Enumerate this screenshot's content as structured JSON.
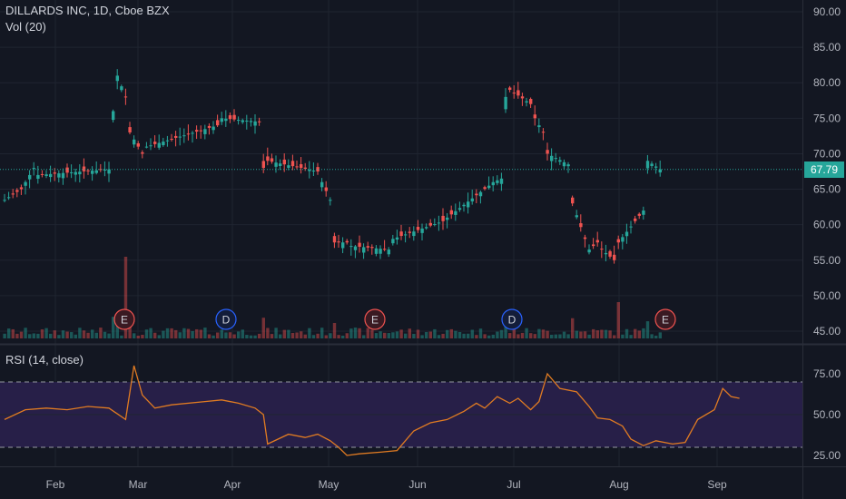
{
  "chart_data": {
    "type": "candlestick",
    "title": "DILLARDS INC, 1D, Cboe BZX",
    "volume_label": "Vol (20)",
    "price_axis": {
      "ticks": [
        90,
        85,
        80,
        75,
        70,
        65,
        60,
        55,
        50,
        45
      ],
      "tick_labels": [
        "90.00",
        "85.00",
        "80.00",
        "75.00",
        "70.00",
        "65.00",
        "60.00",
        "55.00",
        "50.00",
        "45.00"
      ],
      "range": [
        45,
        90
      ]
    },
    "last_price": 67.79,
    "last_price_label": "67.79",
    "x_axis": {
      "labels": [
        "Feb",
        "Mar",
        "Apr",
        "May",
        "Jun",
        "Jul",
        "Aug",
        "Sep"
      ]
    },
    "segments": [
      {
        "n": 5,
        "from": 63.5,
        "to": 65.0
      },
      {
        "n": 3,
        "from": 66.0,
        "to": 68.0
      },
      {
        "n": 18,
        "from": 67.0,
        "to": 67.8
      },
      {
        "n": 1,
        "from": 76.0,
        "to": 76.0
      },
      {
        "n": 3,
        "from": 81.0,
        "to": 78.0
      },
      {
        "n": 4,
        "from": 73.0,
        "to": 70.0
      },
      {
        "n": 18,
        "from": 71.0,
        "to": 74.0
      },
      {
        "n": 10,
        "from": 75.0,
        "to": 74.5
      },
      {
        "n": 1,
        "from": 68.0,
        "to": 68.0
      },
      {
        "n": 13,
        "from": 69.0,
        "to": 67.5
      },
      {
        "n": 3,
        "from": 66.0,
        "to": 63.5
      },
      {
        "n": 4,
        "from": 57.5,
        "to": 57.5
      },
      {
        "n": 10,
        "from": 57.0,
        "to": 56.5
      },
      {
        "n": 13,
        "from": 58.0,
        "to": 60.5
      },
      {
        "n": 11,
        "from": 61.0,
        "to": 65.5
      },
      {
        "n": 3,
        "from": 66.0,
        "to": 66.5
      },
      {
        "n": 1,
        "from": 78.0,
        "to": 78.0
      },
      {
        "n": 6,
        "from": 79.0,
        "to": 77.0
      },
      {
        "n": 3,
        "from": 75.0,
        "to": 73.0
      },
      {
        "n": 6,
        "from": 70.0,
        "to": 68.5
      },
      {
        "n": 4,
        "from": 63.0,
        "to": 58.0
      },
      {
        "n": 3,
        "from": 56.5,
        "to": 57.5
      },
      {
        "n": 4,
        "from": 56.5,
        "to": 55.0
      },
      {
        "n": 7,
        "from": 57.5,
        "to": 62.0
      },
      {
        "n": 4,
        "from": 69.0,
        "to": 67.8
      }
    ],
    "rsi": {
      "label": "RSI (14, close)",
      "ticks": [
        75,
        50,
        25
      ],
      "tick_labels": [
        "75.00",
        "50.00",
        "25.00"
      ],
      "bands": [
        70,
        30
      ],
      "points": [
        [
          0,
          47
        ],
        [
          5,
          53
        ],
        [
          10,
          54
        ],
        [
          15,
          53
        ],
        [
          20,
          55
        ],
        [
          25,
          54
        ],
        [
          29,
          47
        ],
        [
          31,
          80
        ],
        [
          33,
          62
        ],
        [
          36,
          54
        ],
        [
          40,
          56
        ],
        [
          48,
          58
        ],
        [
          52,
          59
        ],
        [
          56,
          57
        ],
        [
          60,
          54
        ],
        [
          62,
          50
        ],
        [
          63,
          32
        ],
        [
          68,
          38
        ],
        [
          72,
          36
        ],
        [
          75,
          38
        ],
        [
          78,
          34
        ],
        [
          80,
          30
        ],
        [
          82,
          25
        ],
        [
          85,
          26
        ],
        [
          90,
          27
        ],
        [
          94,
          28
        ],
        [
          98,
          40
        ],
        [
          102,
          45
        ],
        [
          106,
          47
        ],
        [
          110,
          52
        ],
        [
          113,
          57
        ],
        [
          115,
          54
        ],
        [
          118,
          61
        ],
        [
          121,
          57
        ],
        [
          123,
          60
        ],
        [
          126,
          53
        ],
        [
          128,
          58
        ],
        [
          130,
          75
        ],
        [
          133,
          66
        ],
        [
          137,
          64
        ],
        [
          140,
          55
        ],
        [
          142,
          48
        ],
        [
          145,
          47
        ],
        [
          148,
          43
        ],
        [
          150,
          35
        ],
        [
          153,
          31
        ],
        [
          156,
          34
        ],
        [
          160,
          32
        ],
        [
          163,
          33
        ],
        [
          166,
          47
        ],
        [
          170,
          53
        ],
        [
          172,
          66
        ],
        [
          174,
          61
        ],
        [
          176,
          60
        ]
      ]
    },
    "events": [
      {
        "label": "E",
        "kind": "earnings"
      },
      {
        "label": "D",
        "kind": "dividend"
      },
      {
        "label": "E",
        "kind": "earnings"
      },
      {
        "label": "D",
        "kind": "dividend"
      },
      {
        "label": "E",
        "kind": "earnings"
      }
    ],
    "colors": {
      "up": "#26a69a",
      "down": "#ef5350",
      "rsi_line": "#e07b22",
      "rsi_band": "#271f48",
      "last_price": "#26a69a",
      "background": "#131722"
    }
  }
}
